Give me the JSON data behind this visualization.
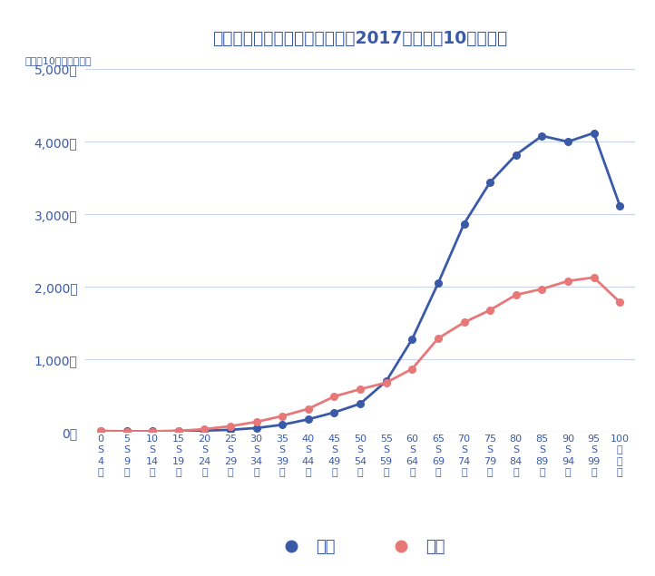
{
  "title": "年齢階級・性別のがん罹患率・2017年（人口10万人対）",
  "ylabel_small": "（人口10万人あたり）",
  "x_labels": [
    [
      "0",
      "S",
      "4",
      "歳"
    ],
    [
      "5",
      "S",
      "9",
      "歳"
    ],
    [
      "10",
      "S",
      "14",
      "歳"
    ],
    [
      "15",
      "S",
      "19",
      "歳"
    ],
    [
      "20",
      "S",
      "24",
      "歳"
    ],
    [
      "25",
      "S",
      "29",
      "歳"
    ],
    [
      "30",
      "S",
      "34",
      "歳"
    ],
    [
      "35",
      "S",
      "39",
      "歳"
    ],
    [
      "40",
      "S",
      "44",
      "歳"
    ],
    [
      "45",
      "S",
      "49",
      "歳"
    ],
    [
      "50",
      "S",
      "54",
      "歳"
    ],
    [
      "55",
      "S",
      "59",
      "歳"
    ],
    [
      "60",
      "S",
      "64",
      "歳"
    ],
    [
      "65",
      "S",
      "69",
      "歳"
    ],
    [
      "70",
      "S",
      "74",
      "歳"
    ],
    [
      "75",
      "S",
      "79",
      "歳"
    ],
    [
      "80",
      "S",
      "84",
      "歳"
    ],
    [
      "85",
      "S",
      "89",
      "歳"
    ],
    [
      "90",
      "S",
      "94",
      "歳"
    ],
    [
      "95",
      "S",
      "99",
      "歳"
    ],
    [
      "100",
      "歳",
      "以",
      "上"
    ]
  ],
  "male_values": [
    14,
    10,
    10,
    14,
    20,
    30,
    55,
    100,
    175,
    270,
    390,
    700,
    1280,
    2050,
    2870,
    3440,
    3820,
    4080,
    4000,
    4120,
    3120
  ],
  "female_values": [
    11,
    9,
    9,
    15,
    40,
    80,
    140,
    220,
    320,
    490,
    590,
    680,
    870,
    1290,
    1510,
    1680,
    1890,
    1970,
    2080,
    2130,
    1790
  ],
  "male_color": "#3a5aa8",
  "female_color": "#e87878",
  "bg_color": "#ffffff",
  "title_color": "#3a5aa8",
  "axis_color": "#3a5aa8",
  "grid_color": "#c8d4e8",
  "ylim": [
    0,
    5000
  ],
  "yticks": [
    0,
    1000,
    2000,
    3000,
    4000,
    5000
  ],
  "ytick_labels": [
    "0人",
    "1,000人",
    "2,000人",
    "3,000人",
    "4,000人",
    "5,000人"
  ],
  "legend_male": "男性",
  "legend_female": "女性",
  "marker_size": 5.5,
  "linewidth": 2.0
}
